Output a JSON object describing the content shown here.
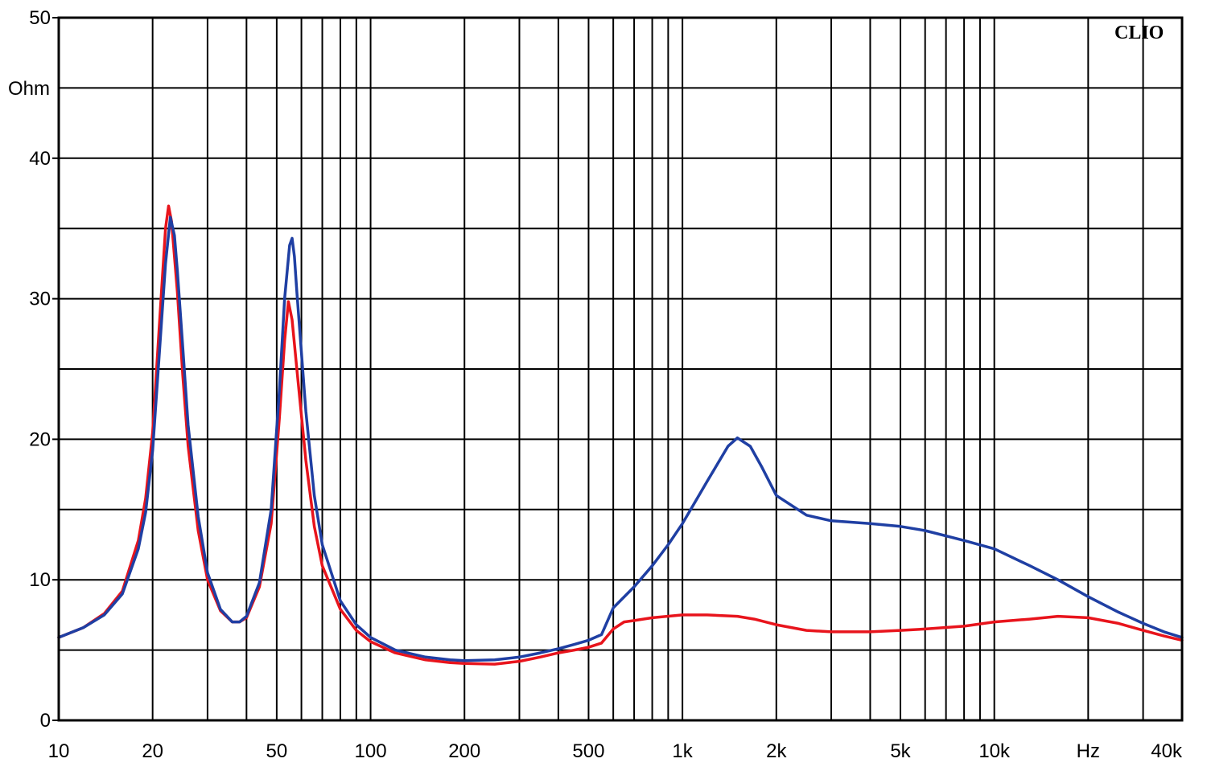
{
  "chart_data": {
    "type": "line",
    "title": "",
    "brand": "CLIO",
    "xscale": "log",
    "xlim": [
      10,
      40000
    ],
    "ylim": [
      0,
      50
    ],
    "grid": true,
    "legend": "none",
    "ylabel": "Ohm",
    "xunit": "Hz",
    "y_ticks": [
      {
        "value": 0,
        "label": "0"
      },
      {
        "value": 10,
        "label": "10"
      },
      {
        "value": 20,
        "label": "20"
      },
      {
        "value": 30,
        "label": "30"
      },
      {
        "value": 40,
        "label": "40"
      },
      {
        "value": 50,
        "label": "50"
      }
    ],
    "x_ticks": [
      {
        "value": 10,
        "label": "10"
      },
      {
        "value": 20,
        "label": "20"
      },
      {
        "value": 50,
        "label": "50"
      },
      {
        "value": 100,
        "label": "100"
      },
      {
        "value": 200,
        "label": "200"
      },
      {
        "value": 500,
        "label": "500"
      },
      {
        "value": 1000,
        "label": "1k"
      },
      {
        "value": 2000,
        "label": "2k"
      },
      {
        "value": 5000,
        "label": "5k"
      },
      {
        "value": 10000,
        "label": "10k"
      },
      {
        "value": 20000,
        "label": "Hz"
      },
      {
        "value": 40000,
        "label": "40k"
      }
    ],
    "series": [
      {
        "color": "#e8141c",
        "points": [
          [
            10,
            5.9
          ],
          [
            12,
            6.6
          ],
          [
            14,
            7.6
          ],
          [
            16,
            9.2
          ],
          [
            18,
            12.8
          ],
          [
            19,
            15.8
          ],
          [
            20,
            20.5
          ],
          [
            21,
            28.0
          ],
          [
            22,
            35.0
          ],
          [
            22.5,
            36.6
          ],
          [
            23,
            35.5
          ],
          [
            24,
            30.5
          ],
          [
            25,
            24.5
          ],
          [
            26,
            19.5
          ],
          [
            28,
            13.5
          ],
          [
            30,
            10.0
          ],
          [
            33,
            7.8
          ],
          [
            36,
            7.0
          ],
          [
            38,
            7.0
          ],
          [
            40,
            7.3
          ],
          [
            44,
            9.5
          ],
          [
            48,
            14.0
          ],
          [
            51,
            21.5
          ],
          [
            53,
            27.0
          ],
          [
            54.5,
            29.8
          ],
          [
            56,
            28.5
          ],
          [
            58,
            25.0
          ],
          [
            62,
            18.5
          ],
          [
            66,
            13.8
          ],
          [
            70,
            11.0
          ],
          [
            80,
            7.9
          ],
          [
            90,
            6.4
          ],
          [
            100,
            5.6
          ],
          [
            120,
            4.8
          ],
          [
            150,
            4.3
          ],
          [
            180,
            4.1
          ],
          [
            200,
            4.05
          ],
          [
            250,
            4.0
          ],
          [
            300,
            4.2
          ],
          [
            350,
            4.5
          ],
          [
            400,
            4.8
          ],
          [
            450,
            5.0
          ],
          [
            500,
            5.2
          ],
          [
            550,
            5.5
          ],
          [
            600,
            6.5
          ],
          [
            650,
            7.0
          ],
          [
            700,
            7.1
          ],
          [
            800,
            7.3
          ],
          [
            1000,
            7.5
          ],
          [
            1200,
            7.5
          ],
          [
            1500,
            7.4
          ],
          [
            1700,
            7.2
          ],
          [
            2000,
            6.8
          ],
          [
            2500,
            6.4
          ],
          [
            3000,
            6.3
          ],
          [
            4000,
            6.3
          ],
          [
            5000,
            6.4
          ],
          [
            6000,
            6.5
          ],
          [
            8000,
            6.7
          ],
          [
            10000,
            7.0
          ],
          [
            13000,
            7.2
          ],
          [
            16000,
            7.4
          ],
          [
            20000,
            7.3
          ],
          [
            25000,
            6.9
          ],
          [
            30000,
            6.4
          ],
          [
            35000,
            6.0
          ],
          [
            40000,
            5.7
          ]
        ]
      },
      {
        "color": "#1f3fa3",
        "points": [
          [
            10,
            5.9
          ],
          [
            12,
            6.6
          ],
          [
            14,
            7.5
          ],
          [
            16,
            9.0
          ],
          [
            18,
            12.2
          ],
          [
            19,
            14.8
          ],
          [
            20,
            19.2
          ],
          [
            21,
            26.0
          ],
          [
            22,
            32.5
          ],
          [
            22.8,
            35.8
          ],
          [
            23.5,
            34.5
          ],
          [
            24,
            32.0
          ],
          [
            25,
            26.5
          ],
          [
            26,
            21.0
          ],
          [
            28,
            14.5
          ],
          [
            30,
            10.5
          ],
          [
            33,
            7.9
          ],
          [
            36,
            7.0
          ],
          [
            38,
            7.0
          ],
          [
            40,
            7.4
          ],
          [
            44,
            9.8
          ],
          [
            48,
            15.0
          ],
          [
            51,
            23.5
          ],
          [
            53,
            30.0
          ],
          [
            55,
            33.8
          ],
          [
            56,
            34.3
          ],
          [
            57,
            33.0
          ],
          [
            58,
            30.5
          ],
          [
            62,
            22.0
          ],
          [
            66,
            16.0
          ],
          [
            70,
            12.5
          ],
          [
            80,
            8.5
          ],
          [
            90,
            6.8
          ],
          [
            100,
            5.9
          ],
          [
            120,
            5.0
          ],
          [
            150,
            4.5
          ],
          [
            180,
            4.3
          ],
          [
            200,
            4.25
          ],
          [
            250,
            4.3
          ],
          [
            300,
            4.5
          ],
          [
            350,
            4.8
          ],
          [
            400,
            5.1
          ],
          [
            450,
            5.4
          ],
          [
            500,
            5.7
          ],
          [
            550,
            6.1
          ],
          [
            600,
            8.0
          ],
          [
            700,
            9.5
          ],
          [
            800,
            11.0
          ],
          [
            900,
            12.5
          ],
          [
            1000,
            14.0
          ],
          [
            1200,
            17.0
          ],
          [
            1400,
            19.5
          ],
          [
            1500,
            20.1
          ],
          [
            1650,
            19.5
          ],
          [
            1800,
            18.0
          ],
          [
            2000,
            16.0
          ],
          [
            2500,
            14.6
          ],
          [
            3000,
            14.2
          ],
          [
            4000,
            14.0
          ],
          [
            5000,
            13.8
          ],
          [
            6000,
            13.5
          ],
          [
            8000,
            12.8
          ],
          [
            10000,
            12.2
          ],
          [
            13000,
            11.0
          ],
          [
            16000,
            10.0
          ],
          [
            20000,
            8.8
          ],
          [
            25000,
            7.7
          ],
          [
            30000,
            6.9
          ],
          [
            35000,
            6.3
          ],
          [
            40000,
            5.9
          ]
        ]
      }
    ]
  }
}
